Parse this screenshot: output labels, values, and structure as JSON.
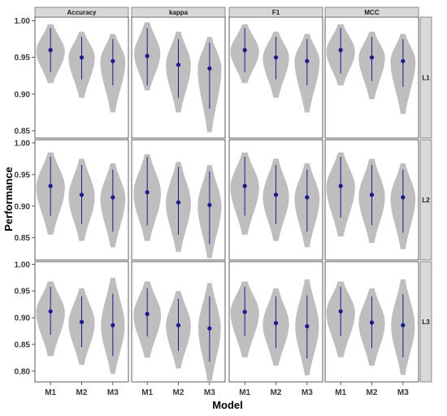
{
  "chart_data": {
    "type": "violin",
    "xlabel": "Model",
    "ylabel": "Performance",
    "metrics": [
      "Accuracy",
      "kappa",
      "F1",
      "MCC"
    ],
    "models": [
      "M1",
      "M2",
      "M3"
    ],
    "colors": {
      "violin": "#bebebe",
      "point": "#1a1a8c",
      "line": "#1a1a8c",
      "strip": "#d9d9d9"
    },
    "rows": [
      {
        "label": "L1",
        "ylim": [
          0.84,
          1.005
        ],
        "ticks": [
          0.85,
          0.9,
          0.95,
          1.0
        ],
        "tick_labels": [
          "0.85",
          "0.90",
          "0.95",
          "1.00"
        ],
        "panels": [
          {
            "metric": "Accuracy",
            "violins": [
              {
                "model": "M1",
                "center": 0.96,
                "lo": 0.93,
                "hi": 0.99,
                "min": 0.915,
                "max": 0.995,
                "mode": 0.958,
                "width": 0.46
              },
              {
                "model": "M2",
                "center": 0.95,
                "lo": 0.92,
                "hi": 0.978,
                "min": 0.895,
                "max": 0.985,
                "mode": 0.95,
                "width": 0.42
              },
              {
                "model": "M3",
                "center": 0.945,
                "lo": 0.912,
                "hi": 0.975,
                "min": 0.875,
                "max": 0.982,
                "mode": 0.945,
                "width": 0.4
              }
            ]
          },
          {
            "metric": "kappa",
            "violins": [
              {
                "model": "M1",
                "center": 0.952,
                "lo": 0.912,
                "hi": 0.99,
                "min": 0.905,
                "max": 0.998,
                "mode": 0.955,
                "width": 0.42
              },
              {
                "model": "M2",
                "center": 0.94,
                "lo": 0.895,
                "hi": 0.975,
                "min": 0.875,
                "max": 0.985,
                "mode": 0.94,
                "width": 0.4
              },
              {
                "model": "M3",
                "center": 0.935,
                "lo": 0.88,
                "hi": 0.97,
                "min": 0.848,
                "max": 0.978,
                "mode": 0.935,
                "width": 0.38
              }
            ]
          },
          {
            "metric": "F1",
            "violins": [
              {
                "model": "M1",
                "center": 0.96,
                "lo": 0.93,
                "hi": 0.99,
                "min": 0.915,
                "max": 0.995,
                "mode": 0.958,
                "width": 0.46
              },
              {
                "model": "M2",
                "center": 0.95,
                "lo": 0.92,
                "hi": 0.978,
                "min": 0.895,
                "max": 0.985,
                "mode": 0.95,
                "width": 0.42
              },
              {
                "model": "M3",
                "center": 0.945,
                "lo": 0.912,
                "hi": 0.975,
                "min": 0.875,
                "max": 0.982,
                "mode": 0.945,
                "width": 0.4
              }
            ]
          },
          {
            "metric": "MCC",
            "violins": [
              {
                "model": "M1",
                "center": 0.96,
                "lo": 0.928,
                "hi": 0.99,
                "min": 0.912,
                "max": 0.995,
                "mode": 0.958,
                "width": 0.46
              },
              {
                "model": "M2",
                "center": 0.95,
                "lo": 0.918,
                "hi": 0.978,
                "min": 0.893,
                "max": 0.985,
                "mode": 0.95,
                "width": 0.42
              },
              {
                "model": "M3",
                "center": 0.945,
                "lo": 0.91,
                "hi": 0.975,
                "min": 0.873,
                "max": 0.982,
                "mode": 0.945,
                "width": 0.4
              }
            ]
          }
        ]
      },
      {
        "label": "L2",
        "ylim": [
          0.815,
          1.005
        ],
        "ticks": [
          0.85,
          0.9,
          0.95,
          1.0
        ],
        "tick_labels": [
          "0.85",
          "0.90",
          "0.95",
          "1.00"
        ],
        "panels": [
          {
            "metric": "Accuracy",
            "violins": [
              {
                "model": "M1",
                "center": 0.932,
                "lo": 0.885,
                "hi": 0.978,
                "min": 0.855,
                "max": 0.985,
                "mode": 0.93,
                "width": 0.46
              },
              {
                "model": "M2",
                "center": 0.918,
                "lo": 0.872,
                "hi": 0.965,
                "min": 0.845,
                "max": 0.975,
                "mode": 0.915,
                "width": 0.42
              },
              {
                "model": "M3",
                "center": 0.914,
                "lo": 0.86,
                "hi": 0.958,
                "min": 0.835,
                "max": 0.968,
                "mode": 0.912,
                "width": 0.4
              }
            ]
          },
          {
            "metric": "kappa",
            "violins": [
              {
                "model": "M1",
                "center": 0.922,
                "lo": 0.87,
                "hi": 0.978,
                "min": 0.845,
                "max": 0.982,
                "mode": 0.92,
                "width": 0.44
              },
              {
                "model": "M2",
                "center": 0.906,
                "lo": 0.855,
                "hi": 0.962,
                "min": 0.828,
                "max": 0.97,
                "mode": 0.905,
                "width": 0.4
              },
              {
                "model": "M3",
                "center": 0.902,
                "lo": 0.84,
                "hi": 0.955,
                "min": 0.818,
                "max": 0.965,
                "mode": 0.9,
                "width": 0.38
              }
            ]
          },
          {
            "metric": "F1",
            "violins": [
              {
                "model": "M1",
                "center": 0.932,
                "lo": 0.885,
                "hi": 0.978,
                "min": 0.855,
                "max": 0.985,
                "mode": 0.93,
                "width": 0.46
              },
              {
                "model": "M2",
                "center": 0.918,
                "lo": 0.872,
                "hi": 0.965,
                "min": 0.845,
                "max": 0.975,
                "mode": 0.915,
                "width": 0.42
              },
              {
                "model": "M3",
                "center": 0.914,
                "lo": 0.86,
                "hi": 0.958,
                "min": 0.835,
                "max": 0.968,
                "mode": 0.912,
                "width": 0.4
              }
            ]
          },
          {
            "metric": "MCC",
            "violins": [
              {
                "model": "M1",
                "center": 0.932,
                "lo": 0.882,
                "hi": 0.978,
                "min": 0.852,
                "max": 0.985,
                "mode": 0.93,
                "width": 0.46
              },
              {
                "model": "M2",
                "center": 0.918,
                "lo": 0.87,
                "hi": 0.965,
                "min": 0.842,
                "max": 0.975,
                "mode": 0.915,
                "width": 0.42
              },
              {
                "model": "M3",
                "center": 0.914,
                "lo": 0.858,
                "hi": 0.958,
                "min": 0.832,
                "max": 0.968,
                "mode": 0.912,
                "width": 0.4
              }
            ]
          }
        ]
      },
      {
        "label": "L3",
        "ylim": [
          0.78,
          1.005
        ],
        "ticks": [
          0.8,
          0.85,
          0.9,
          0.95,
          1.0
        ],
        "tick_labels": [
          "0.80",
          "0.85",
          "0.90",
          "0.95",
          "1.00"
        ],
        "panels": [
          {
            "metric": "Accuracy",
            "violins": [
              {
                "model": "M1",
                "center": 0.912,
                "lo": 0.868,
                "hi": 0.958,
                "min": 0.828,
                "max": 0.968,
                "mode": 0.91,
                "width": 0.46
              },
              {
                "model": "M2",
                "center": 0.892,
                "lo": 0.845,
                "hi": 0.94,
                "min": 0.812,
                "max": 0.955,
                "mode": 0.89,
                "width": 0.42
              },
              {
                "model": "M3",
                "center": 0.886,
                "lo": 0.828,
                "hi": 0.945,
                "min": 0.795,
                "max": 0.975,
                "mode": 0.885,
                "width": 0.38
              }
            ]
          },
          {
            "metric": "kappa",
            "violins": [
              {
                "model": "M1",
                "center": 0.907,
                "lo": 0.865,
                "hi": 0.955,
                "min": 0.825,
                "max": 0.968,
                "mode": 0.905,
                "width": 0.44
              },
              {
                "model": "M2",
                "center": 0.886,
                "lo": 0.838,
                "hi": 0.935,
                "min": 0.805,
                "max": 0.95,
                "mode": 0.885,
                "width": 0.4
              },
              {
                "model": "M3",
                "center": 0.88,
                "lo": 0.818,
                "hi": 0.94,
                "min": 0.78,
                "max": 0.965,
                "mode": 0.88,
                "width": 0.36
              }
            ]
          },
          {
            "metric": "F1",
            "violins": [
              {
                "model": "M1",
                "center": 0.911,
                "lo": 0.866,
                "hi": 0.958,
                "min": 0.826,
                "max": 0.968,
                "mode": 0.91,
                "width": 0.46
              },
              {
                "model": "M2",
                "center": 0.89,
                "lo": 0.843,
                "hi": 0.94,
                "min": 0.81,
                "max": 0.955,
                "mode": 0.888,
                "width": 0.42
              },
              {
                "model": "M3",
                "center": 0.884,
                "lo": 0.824,
                "hi": 0.942,
                "min": 0.792,
                "max": 0.972,
                "mode": 0.884,
                "width": 0.38
              }
            ]
          },
          {
            "metric": "MCC",
            "violins": [
              {
                "model": "M1",
                "center": 0.912,
                "lo": 0.866,
                "hi": 0.958,
                "min": 0.826,
                "max": 0.968,
                "mode": 0.91,
                "width": 0.46
              },
              {
                "model": "M2",
                "center": 0.891,
                "lo": 0.843,
                "hi": 0.94,
                "min": 0.81,
                "max": 0.955,
                "mode": 0.89,
                "width": 0.42
              },
              {
                "model": "M3",
                "center": 0.886,
                "lo": 0.826,
                "hi": 0.944,
                "min": 0.793,
                "max": 0.972,
                "mode": 0.885,
                "width": 0.38
              }
            ]
          }
        ]
      }
    ]
  }
}
